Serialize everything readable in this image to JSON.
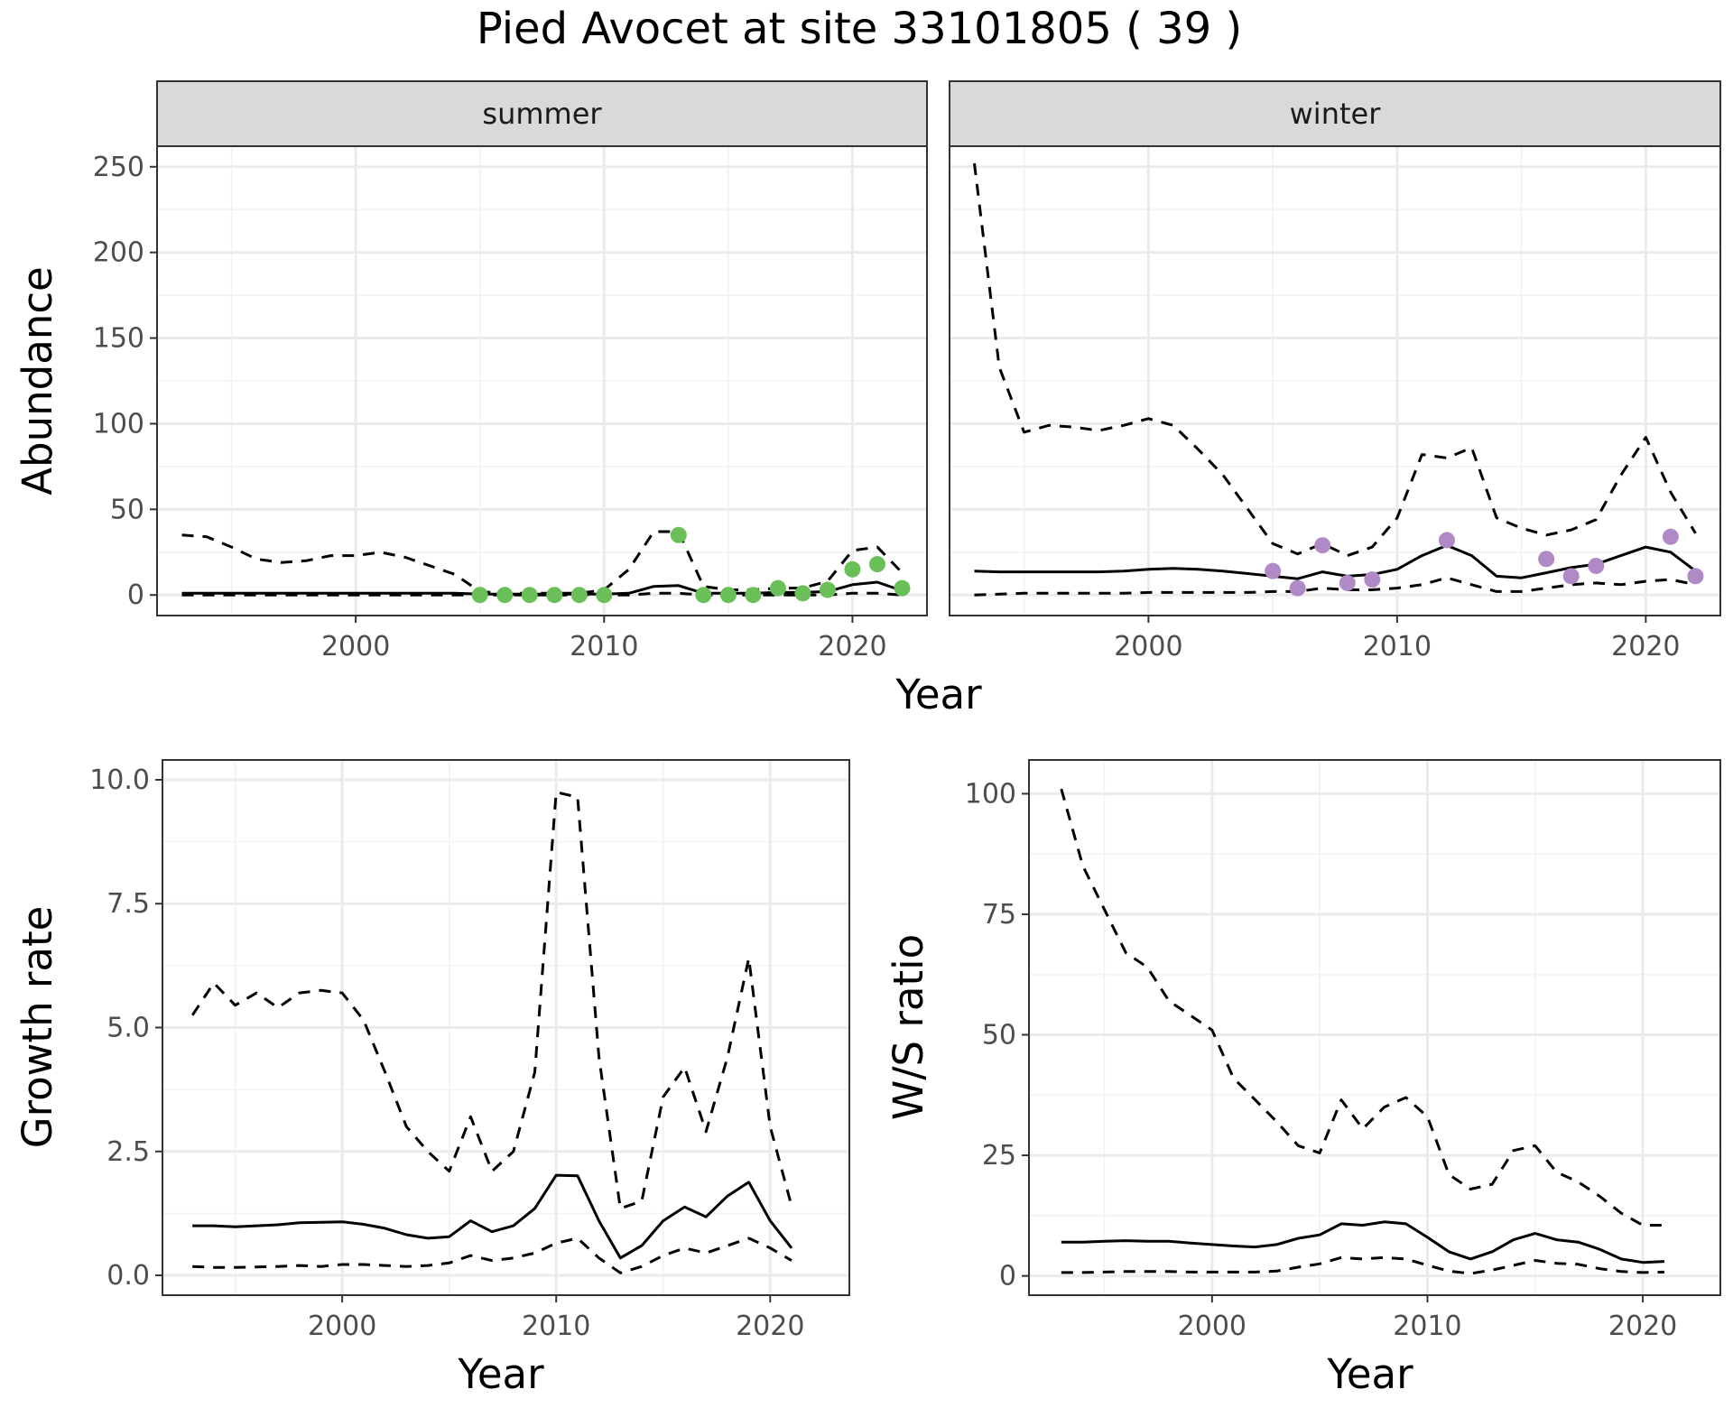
{
  "title": "Pied Avocet at site 33101805 ( 39 )",
  "chart_data": [
    {
      "type": "line",
      "facet": "summer",
      "xlabel": "Year",
      "ylabel": "Abundance",
      "xlim": [
        1992,
        2023
      ],
      "ylim": [
        -12,
        262
      ],
      "xticks": [
        2000,
        2010,
        2020
      ],
      "yticks": [
        0,
        50,
        100,
        150,
        200,
        250
      ],
      "grid": true,
      "point_color": "#6bbf59",
      "lines": [
        {
          "role": "estimate",
          "style": "solid",
          "x": [
            1993,
            1994,
            1995,
            1996,
            1997,
            1998,
            1999,
            2000,
            2001,
            2002,
            2003,
            2004,
            2005,
            2006,
            2007,
            2008,
            2009,
            2010,
            2011,
            2012,
            2013,
            2014,
            2015,
            2016,
            2017,
            2018,
            2019,
            2020,
            2021,
            2022
          ],
          "y": [
            1,
            1,
            1,
            1,
            1,
            1,
            1,
            1,
            1,
            1,
            1,
            1,
            0.5,
            0.5,
            0.5,
            0.5,
            0.5,
            0.5,
            1,
            5,
            5.5,
            1,
            1,
            1,
            1.5,
            1.5,
            2,
            6,
            7.5,
            2.5
          ]
        },
        {
          "role": "upper",
          "style": "dashed",
          "x": [
            1993,
            1994,
            1995,
            1996,
            1997,
            1998,
            1999,
            2000,
            2001,
            2002,
            2003,
            2004,
            2005,
            2006,
            2007,
            2008,
            2009,
            2010,
            2011,
            2012,
            2013,
            2014,
            2015,
            2016,
            2017,
            2018,
            2019,
            2020,
            2021,
            2022
          ],
          "y": [
            35,
            34,
            28,
            21,
            19,
            20,
            23,
            23,
            25,
            22,
            17,
            12,
            2,
            1,
            1,
            1,
            1,
            3,
            15,
            37,
            37,
            5,
            3,
            3,
            4,
            4,
            8,
            26,
            28,
            13
          ]
        },
        {
          "role": "lower",
          "style": "dashed",
          "x": [
            1993,
            1994,
            1995,
            1996,
            1997,
            1998,
            1999,
            2000,
            2001,
            2002,
            2003,
            2004,
            2005,
            2006,
            2007,
            2008,
            2009,
            2010,
            2011,
            2012,
            2013,
            2014,
            2015,
            2016,
            2017,
            2018,
            2019,
            2020,
            2021,
            2022
          ],
          "y": [
            0,
            0,
            0,
            0,
            0,
            0,
            0,
            0,
            0,
            0,
            0,
            0,
            0,
            0,
            0,
            0,
            0,
            0,
            0,
            1,
            1,
            0,
            0,
            0,
            0,
            0,
            0,
            1,
            1,
            0
          ]
        }
      ],
      "points": {
        "x": [
          2005,
          2006,
          2007,
          2008,
          2009,
          2010,
          2013,
          2014,
          2015,
          2016,
          2017,
          2018,
          2019,
          2020,
          2021,
          2022
        ],
        "y": [
          0,
          0,
          0,
          0,
          0,
          0,
          35,
          0,
          0,
          0,
          4,
          1,
          3,
          15,
          18,
          4
        ]
      }
    },
    {
      "type": "line",
      "facet": "winter",
      "xlabel": "Year",
      "ylabel": "Abundance",
      "xlim": [
        1992,
        2023
      ],
      "ylim": [
        -12,
        262
      ],
      "xticks": [
        2000,
        2010,
        2020
      ],
      "yticks": [
        0,
        50,
        100,
        150,
        200,
        250
      ],
      "grid": true,
      "point_color": "#b08ac6",
      "lines": [
        {
          "role": "estimate",
          "style": "solid",
          "x": [
            1993,
            1994,
            1995,
            1996,
            1997,
            1998,
            1999,
            2000,
            2001,
            2002,
            2003,
            2004,
            2005,
            2006,
            2007,
            2008,
            2009,
            2010,
            2011,
            2012,
            2013,
            2014,
            2015,
            2016,
            2017,
            2018,
            2019,
            2020,
            2021,
            2022
          ],
          "y": [
            14,
            13.5,
            13.5,
            13.5,
            13.5,
            13.5,
            14,
            15,
            15.5,
            15,
            14,
            12.5,
            11,
            9.5,
            13.5,
            11,
            12,
            15,
            23,
            29,
            23,
            11,
            10,
            13,
            16,
            18,
            23,
            28,
            25,
            14
          ]
        },
        {
          "role": "upper",
          "style": "dashed",
          "x": [
            1993,
            1994,
            1995,
            1996,
            1997,
            1998,
            1999,
            2000,
            2001,
            2002,
            2003,
            2004,
            2005,
            2006,
            2007,
            2008,
            2009,
            2010,
            2011,
            2012,
            2013,
            2014,
            2015,
            2016,
            2017,
            2018,
            2019,
            2020,
            2021,
            2022
          ],
          "y": [
            252,
            133,
            95,
            99,
            98,
            96,
            99,
            103,
            99,
            85,
            70,
            50,
            30,
            24,
            30,
            23,
            28,
            45,
            82,
            80,
            86,
            45,
            39,
            35,
            38,
            44,
            70,
            92,
            60,
            36
          ]
        },
        {
          "role": "lower",
          "style": "dashed",
          "x": [
            1993,
            1994,
            1995,
            1996,
            1997,
            1998,
            1999,
            2000,
            2001,
            2002,
            2003,
            2004,
            2005,
            2006,
            2007,
            2008,
            2009,
            2010,
            2011,
            2012,
            2013,
            2014,
            2015,
            2016,
            2017,
            2018,
            2019,
            2020,
            2021,
            2022
          ],
          "y": [
            0,
            0.5,
            1,
            1,
            1,
            1,
            1,
            1.5,
            1.5,
            1.5,
            1.5,
            1.5,
            2,
            2,
            4,
            3,
            3,
            4,
            6,
            10,
            6,
            2,
            2,
            4,
            6,
            7,
            6,
            8,
            9,
            6
          ]
        }
      ],
      "points": {
        "x": [
          2005,
          2006,
          2007,
          2008,
          2009,
          2012,
          2016,
          2017,
          2018,
          2021,
          2022
        ],
        "y": [
          14,
          4,
          29,
          7,
          9,
          32,
          21,
          11,
          17,
          34,
          11
        ]
      }
    },
    {
      "type": "line",
      "xlabel": "Year",
      "ylabel": "Growth rate",
      "xlim": [
        1991.6,
        2023.7
      ],
      "ylim": [
        -0.4,
        10.4
      ],
      "xticks": [
        2000,
        2010,
        2020
      ],
      "yticks": [
        0.0,
        2.5,
        5.0,
        7.5,
        10.0
      ],
      "ytick_labels": [
        "0.0",
        "2.5",
        "5.0",
        "7.5",
        "10.0"
      ],
      "grid": true,
      "lines": [
        {
          "role": "estimate",
          "style": "solid",
          "x": [
            1993,
            1994,
            1995,
            1996,
            1997,
            1998,
            1999,
            2000,
            2001,
            2002,
            2003,
            2004,
            2005,
            2006,
            2007,
            2008,
            2009,
            2010,
            2011,
            2012,
            2013,
            2014,
            2015,
            2016,
            2017,
            2018,
            2019,
            2020,
            2021
          ],
          "y": [
            1.0,
            1.0,
            0.98,
            1.0,
            1.02,
            1.06,
            1.07,
            1.08,
            1.03,
            0.95,
            0.82,
            0.75,
            0.78,
            1.1,
            0.88,
            1.0,
            1.35,
            2.02,
            2.01,
            1.1,
            0.35,
            0.6,
            1.1,
            1.38,
            1.18,
            1.6,
            1.88,
            1.1,
            0.55
          ]
        },
        {
          "role": "upper",
          "style": "dashed",
          "x": [
            1993,
            1994,
            1995,
            1996,
            1997,
            1998,
            1999,
            2000,
            2001,
            2002,
            2003,
            2004,
            2005,
            2006,
            2007,
            2008,
            2009,
            2010,
            2011,
            2012,
            2013,
            2014,
            2015,
            2016,
            2017,
            2018,
            2019,
            2020,
            2021
          ],
          "y": [
            5.25,
            5.9,
            5.45,
            5.7,
            5.4,
            5.7,
            5.75,
            5.7,
            5.15,
            4.1,
            3.0,
            2.5,
            2.1,
            3.2,
            2.1,
            2.5,
            4.1,
            9.75,
            9.65,
            4.4,
            1.35,
            1.5,
            3.6,
            4.2,
            2.9,
            4.4,
            6.4,
            3.0,
            1.4
          ]
        },
        {
          "role": "lower",
          "style": "dashed",
          "x": [
            1993,
            1994,
            1995,
            1996,
            1997,
            1998,
            1999,
            2000,
            2001,
            2002,
            2003,
            2004,
            2005,
            2006,
            2007,
            2008,
            2009,
            2010,
            2011,
            2012,
            2013,
            2014,
            2015,
            2016,
            2017,
            2018,
            2019,
            2020,
            2021
          ],
          "y": [
            0.18,
            0.16,
            0.16,
            0.17,
            0.18,
            0.2,
            0.18,
            0.22,
            0.22,
            0.2,
            0.18,
            0.2,
            0.25,
            0.4,
            0.3,
            0.35,
            0.45,
            0.65,
            0.75,
            0.35,
            0.05,
            0.18,
            0.4,
            0.55,
            0.45,
            0.6,
            0.75,
            0.55,
            0.3
          ]
        }
      ]
    },
    {
      "type": "line",
      "xlabel": "Year",
      "ylabel": "W/S ratio",
      "xlim": [
        1991.5,
        2023.6
      ],
      "ylim": [
        -4,
        107
      ],
      "xticks": [
        2000,
        2010,
        2020
      ],
      "yticks": [
        0,
        25,
        50,
        75,
        100
      ],
      "grid": true,
      "lines": [
        {
          "role": "estimate",
          "style": "solid",
          "x": [
            1993,
            1994,
            1995,
            1996,
            1997,
            1998,
            1999,
            2000,
            2001,
            2002,
            2003,
            2004,
            2005,
            2006,
            2007,
            2008,
            2009,
            2010,
            2011,
            2012,
            2013,
            2014,
            2015,
            2016,
            2017,
            2018,
            2019,
            2020,
            2021
          ],
          "y": [
            7,
            7,
            7.2,
            7.3,
            7.2,
            7.2,
            6.8,
            6.5,
            6.2,
            6.0,
            6.5,
            7.8,
            8.5,
            10.8,
            10.5,
            11.2,
            10.8,
            8.0,
            5.0,
            3.5,
            5.0,
            7.5,
            8.8,
            7.5,
            7.0,
            5.5,
            3.5,
            2.8,
            3.0
          ]
        },
        {
          "role": "upper",
          "style": "dashed",
          "x": [
            1993,
            1994,
            1995,
            1996,
            1997,
            1998,
            1999,
            2000,
            2001,
            2002,
            2003,
            2004,
            2005,
            2006,
            2007,
            2008,
            2009,
            2010,
            2011,
            2012,
            2013,
            2014,
            2015,
            2016,
            2017,
            2018,
            2019,
            2020,
            2021
          ],
          "y": [
            101,
            85,
            76,
            67,
            64,
            57,
            54,
            51,
            41,
            36.5,
            32,
            27,
            25.5,
            36.5,
            30.5,
            35,
            37,
            33,
            21,
            18,
            19,
            26,
            27,
            21.5,
            19.5,
            16.5,
            13,
            10.5,
            10.5
          ]
        },
        {
          "role": "lower",
          "style": "dashed",
          "x": [
            1993,
            1994,
            1995,
            1996,
            1997,
            1998,
            1999,
            2000,
            2001,
            2002,
            2003,
            2004,
            2005,
            2006,
            2007,
            2008,
            2009,
            2010,
            2011,
            2012,
            2013,
            2014,
            2015,
            2016,
            2017,
            2018,
            2019,
            2020,
            2021
          ],
          "y": [
            0.7,
            0.7,
            0.8,
            0.9,
            0.9,
            0.9,
            0.8,
            0.8,
            0.8,
            0.8,
            1.0,
            1.8,
            2.5,
            3.8,
            3.5,
            3.8,
            3.5,
            2.2,
            1.0,
            0.5,
            1.2,
            2.2,
            3.2,
            2.6,
            2.4,
            1.5,
            0.9,
            0.7,
            0.8
          ]
        }
      ]
    }
  ]
}
